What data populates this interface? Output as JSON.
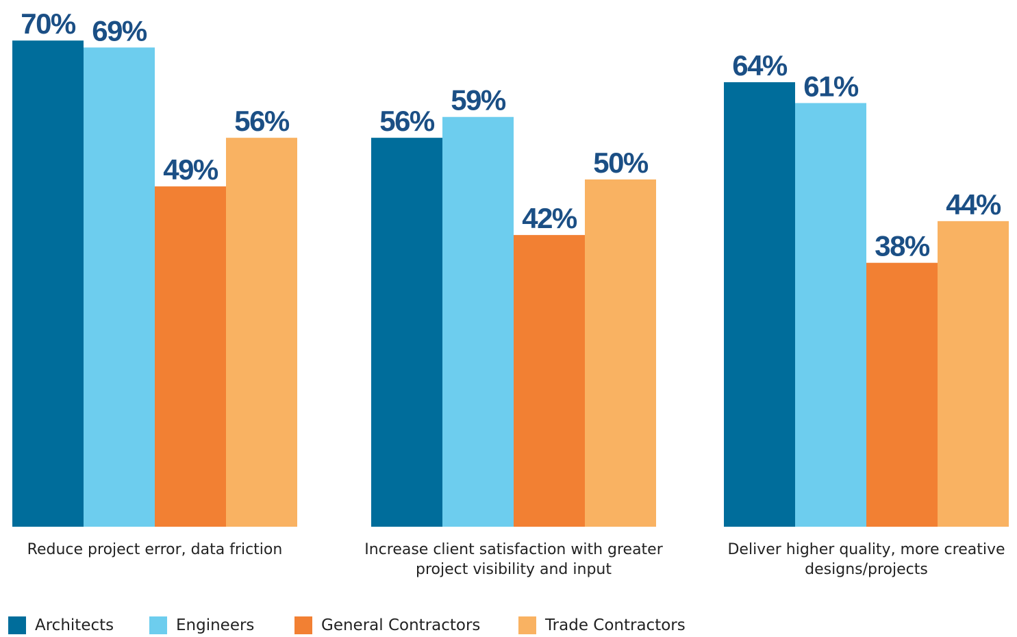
{
  "chart_data": {
    "type": "bar",
    "categories": [
      "Reduce project error, data friction",
      "Increase client satisfaction with greater project visibility and input",
      "Deliver higher quality, more creative designs/projects"
    ],
    "series": [
      {
        "name": "Architects",
        "color": "#006d9b",
        "values": [
          70,
          56,
          64
        ],
        "value_labels": [
          "70%",
          "56%",
          "64%"
        ]
      },
      {
        "name": "Engineers",
        "color": "#6dcdee",
        "values": [
          69,
          59,
          61
        ],
        "value_labels": [
          "69%",
          "59%",
          "61%"
        ]
      },
      {
        "name": "General Contractors",
        "color": "#f28033",
        "values": [
          49,
          42,
          38
        ],
        "value_labels": [
          "49%",
          "42%",
          "38%"
        ]
      },
      {
        "name": "Trade Contractors",
        "color": "#f9b262",
        "values": [
          56,
          50,
          44
        ],
        "value_labels": [
          "56%",
          "50%",
          "44%"
        ]
      }
    ],
    "legend": "bottom-left"
  }
}
